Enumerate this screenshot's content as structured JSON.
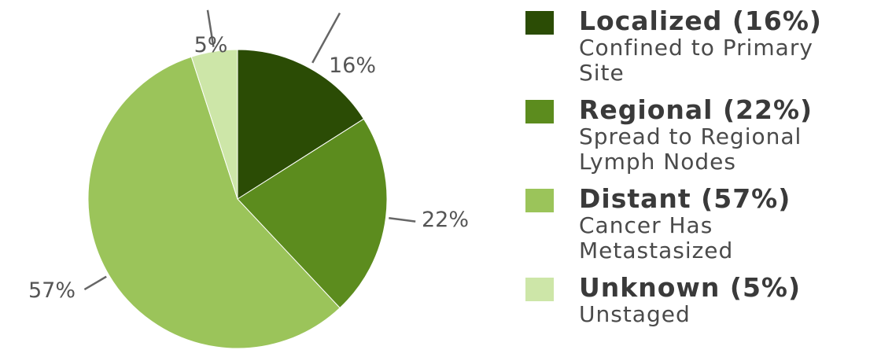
{
  "chart_data": {
    "type": "pie",
    "title": "",
    "categories": [
      "Localized",
      "Regional",
      "Distant",
      "Unknown"
    ],
    "values": [
      16,
      22,
      57,
      5
    ],
    "value_labels": [
      "16%",
      "22%",
      "57%",
      "5%"
    ],
    "colors": [
      "#2b4c05",
      "#5c8c1e",
      "#9bc45a",
      "#cde6a8"
    ],
    "start_angle_deg": 0,
    "direction": "clockwise",
    "legend_position": "right"
  },
  "legend": {
    "items": [
      {
        "title": "Localized (16%)",
        "desc": "Confined to Primary Site",
        "color": "#2b4c05"
      },
      {
        "title": "Regional (22%)",
        "desc": "Spread to Regional Lymph Nodes",
        "color": "#5c8c1e"
      },
      {
        "title": "Distant (57%)",
        "desc": "Cancer Has Metastasized",
        "color": "#9bc45a"
      },
      {
        "title": "Unknown (5%)",
        "desc": "Unstaged",
        "color": "#cde6a8"
      }
    ]
  }
}
